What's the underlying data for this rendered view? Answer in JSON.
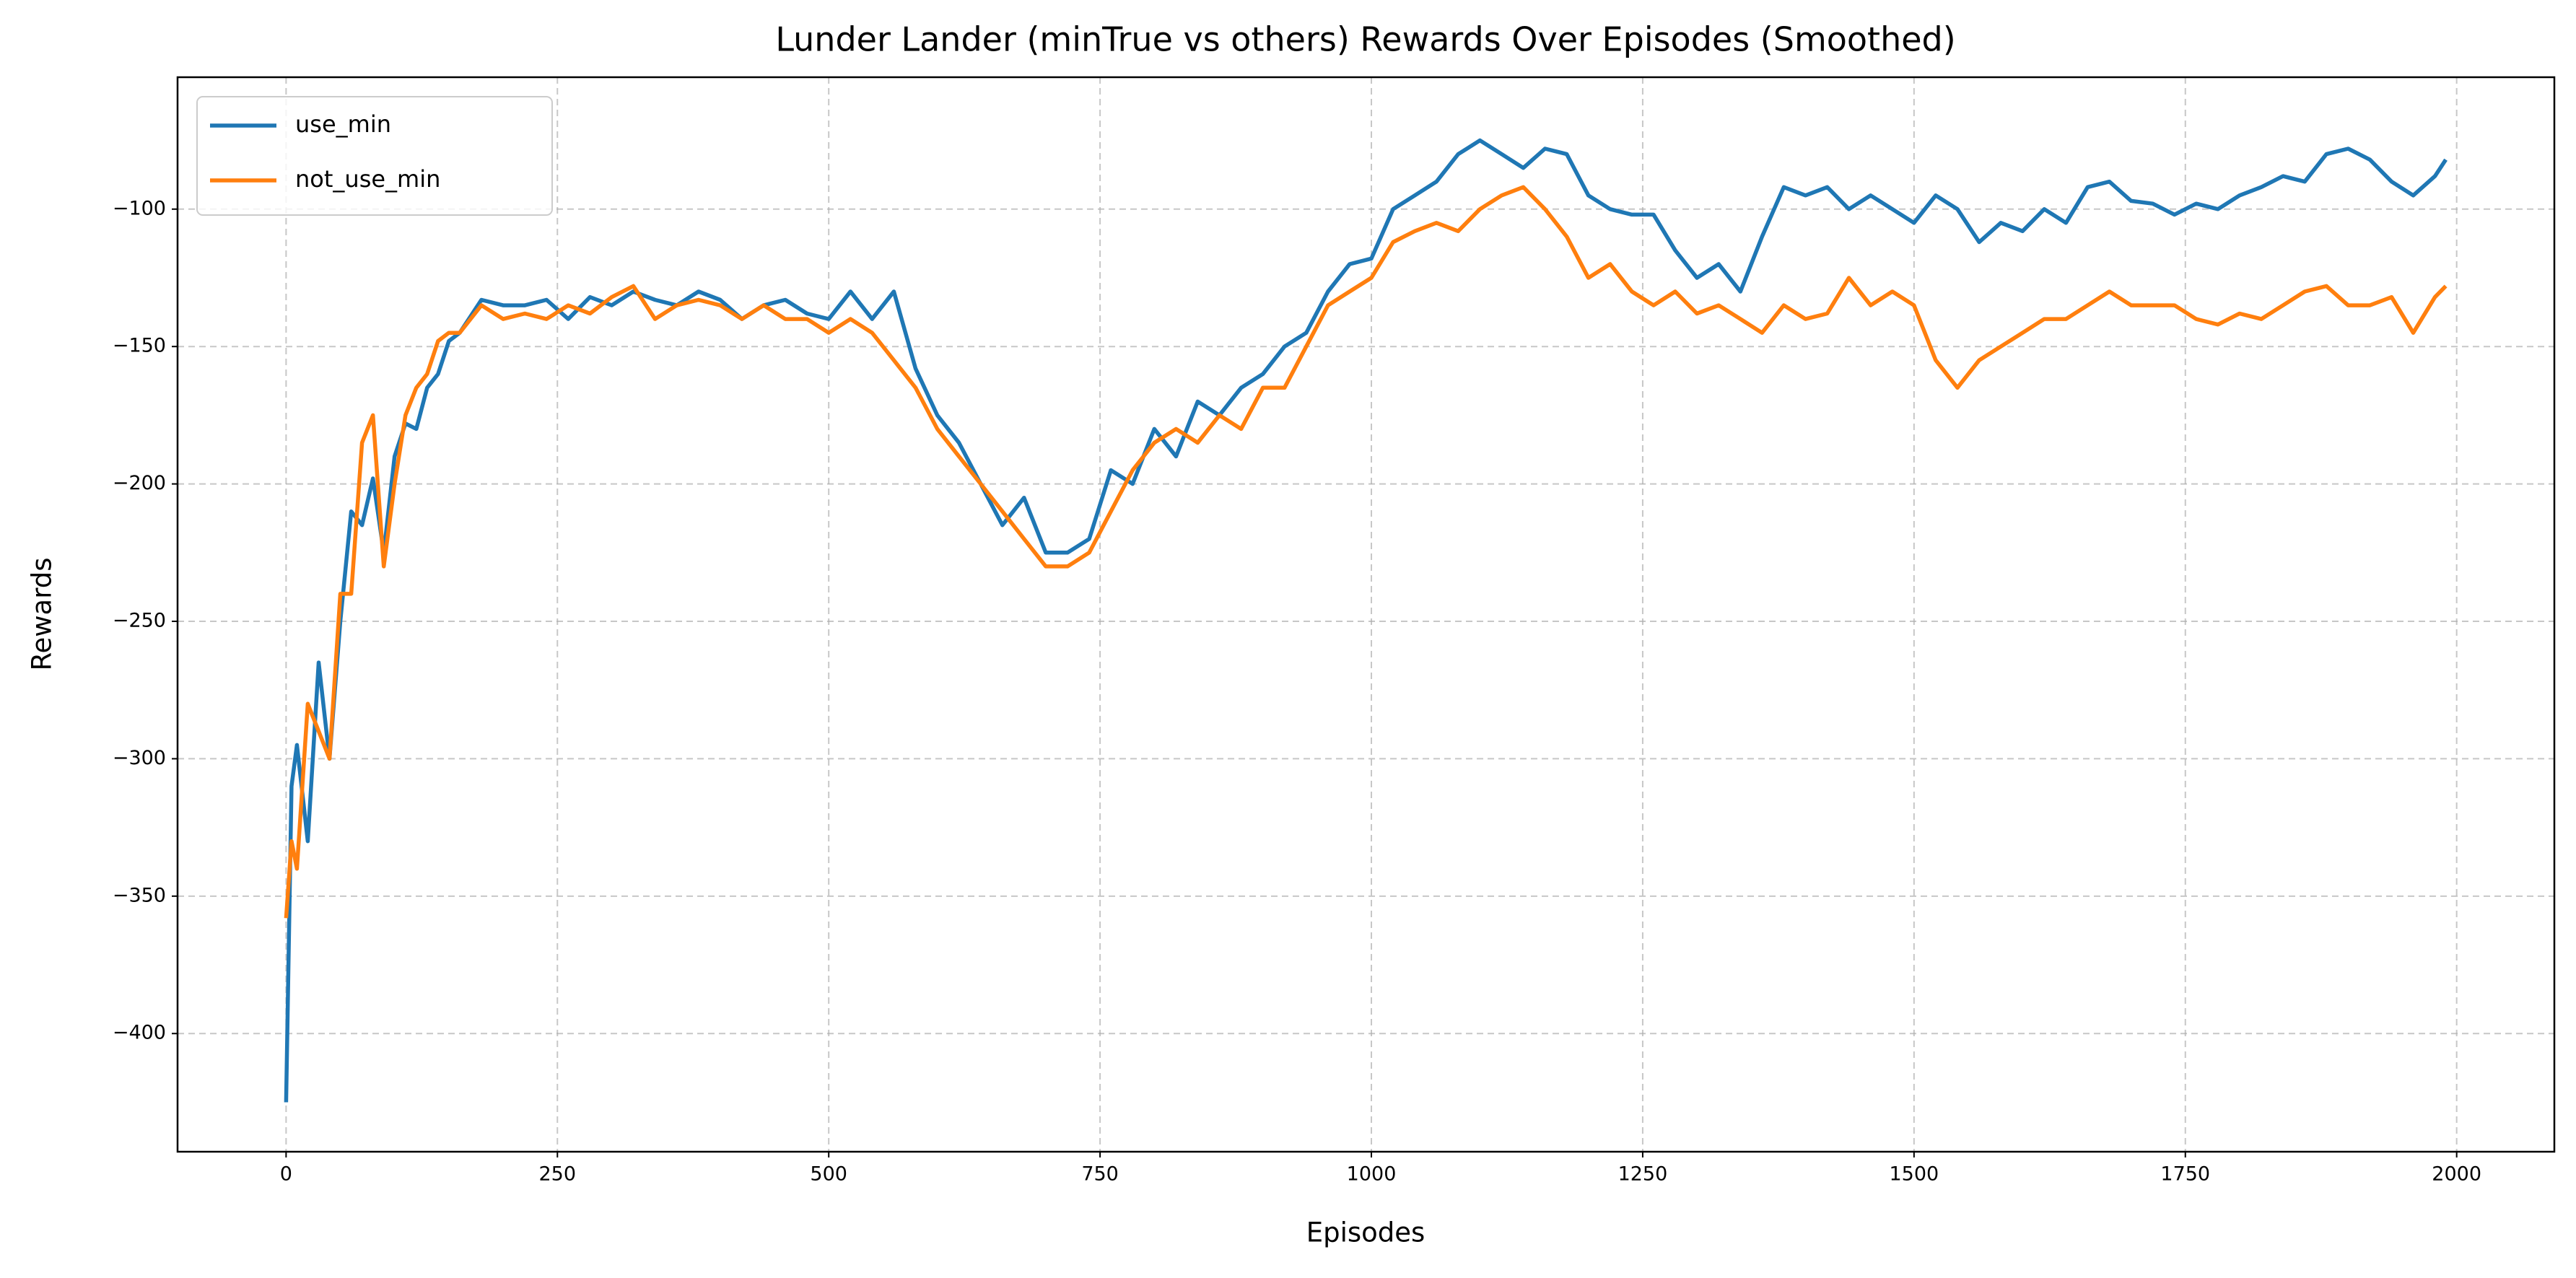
{
  "chart_data": {
    "type": "line",
    "title": "Lunder Lander (minTrue vs others) Rewards Over Episodes (Smoothed)",
    "xlabel": "Episodes",
    "ylabel": "Rewards",
    "x": [
      0,
      5,
      10,
      20,
      30,
      40,
      50,
      60,
      70,
      80,
      90,
      100,
      110,
      120,
      130,
      140,
      150,
      160,
      180,
      200,
      220,
      240,
      260,
      280,
      300,
      320,
      340,
      360,
      380,
      400,
      420,
      440,
      460,
      480,
      500,
      520,
      540,
      560,
      580,
      600,
      620,
      640,
      660,
      680,
      700,
      720,
      740,
      760,
      780,
      800,
      820,
      840,
      860,
      880,
      900,
      920,
      940,
      960,
      980,
      1000,
      1020,
      1040,
      1060,
      1080,
      1100,
      1120,
      1140,
      1160,
      1180,
      1200,
      1220,
      1240,
      1260,
      1280,
      1300,
      1320,
      1340,
      1360,
      1380,
      1400,
      1420,
      1440,
      1460,
      1480,
      1500,
      1520,
      1540,
      1560,
      1580,
      1600,
      1620,
      1640,
      1660,
      1680,
      1700,
      1720,
      1740,
      1760,
      1780,
      1800,
      1820,
      1840,
      1860,
      1880,
      1900,
      1920,
      1940,
      1960,
      1980,
      1990
    ],
    "series": [
      {
        "name": "use_min",
        "color": "#1f77b4",
        "values": [
          -425,
          -310,
          -295,
          -330,
          -265,
          -300,
          -250,
          -210,
          -215,
          -198,
          -225,
          -190,
          -178,
          -180,
          -165,
          -160,
          -148,
          -145,
          -133,
          -135,
          -135,
          -133,
          -140,
          -132,
          -135,
          -130,
          -133,
          -135,
          -130,
          -133,
          -140,
          -135,
          -133,
          -138,
          -140,
          -130,
          -140,
          -130,
          -158,
          -175,
          -185,
          -200,
          -215,
          -205,
          -225,
          -225,
          -220,
          -195,
          -200,
          -180,
          -190,
          -170,
          -175,
          -165,
          -160,
          -150,
          -145,
          -130,
          -120,
          -118,
          -100,
          -95,
          -90,
          -80,
          -75,
          -80,
          -85,
          -78,
          -80,
          -95,
          -100,
          -102,
          -102,
          -115,
          -125,
          -120,
          -130,
          -110,
          -92,
          -95,
          -92,
          -100,
          -95,
          -100,
          -105,
          -95,
          -100,
          -112,
          -105,
          -108,
          -100,
          -105,
          -92,
          -90,
          -97,
          -98,
          -102,
          -98,
          -100,
          -95,
          -92,
          -88,
          -90,
          -80,
          -78,
          -82,
          -90,
          -95,
          -88,
          -82
        ]
      },
      {
        "name": "not_use_min",
        "color": "#ff7f0e",
        "values": [
          -358,
          -330,
          -340,
          -280,
          -290,
          -300,
          -240,
          -240,
          -185,
          -175,
          -230,
          -200,
          -175,
          -165,
          -160,
          -148,
          -145,
          -145,
          -135,
          -140,
          -138,
          -140,
          -135,
          -138,
          -132,
          -128,
          -140,
          -135,
          -133,
          -135,
          -140,
          -135,
          -140,
          -140,
          -145,
          -140,
          -145,
          -155,
          -165,
          -180,
          -190,
          -200,
          -210,
          -220,
          -230,
          -230,
          -225,
          -210,
          -195,
          -185,
          -180,
          -185,
          -175,
          -180,
          -165,
          -165,
          -150,
          -135,
          -130,
          -125,
          -112,
          -108,
          -105,
          -108,
          -100,
          -95,
          -92,
          -100,
          -110,
          -125,
          -120,
          -130,
          -135,
          -130,
          -138,
          -135,
          -140,
          -145,
          -135,
          -140,
          -138,
          -125,
          -135,
          -130,
          -135,
          -155,
          -165,
          -155,
          -150,
          -145,
          -140,
          -140,
          -135,
          -130,
          -135,
          -135,
          -135,
          -140,
          -142,
          -138,
          -140,
          -135,
          -130,
          -128,
          -135,
          -135,
          -132,
          -145,
          -132,
          -128
        ]
      }
    ],
    "xlim": [
      -100,
      2090
    ],
    "ylim": [
      -443,
      -52
    ],
    "xticks": [
      0,
      250,
      500,
      750,
      1000,
      1250,
      1500,
      1750,
      2000
    ],
    "yticks": [
      {
        "value": -400,
        "label": "−400"
      },
      {
        "value": -350,
        "label": "−350"
      },
      {
        "value": -300,
        "label": "−300"
      },
      {
        "value": -250,
        "label": "−250"
      },
      {
        "value": -200,
        "label": "−200"
      },
      {
        "value": -150,
        "label": "−150"
      },
      {
        "value": -100,
        "label": "−100"
      }
    ],
    "grid": true,
    "legend": "upper left"
  }
}
